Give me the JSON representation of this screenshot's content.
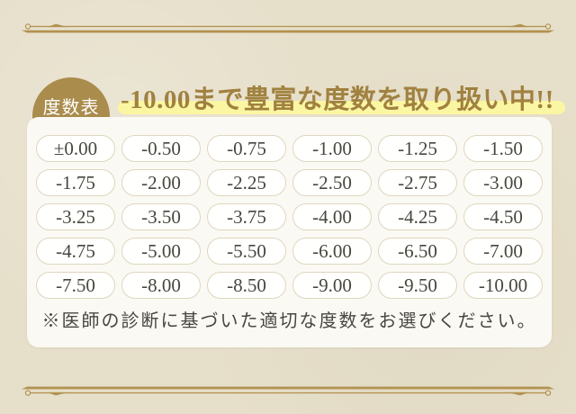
{
  "badge": {
    "label": "度数表"
  },
  "heading": {
    "text": "-10.00まで豊富な度数を取り扱い中!!"
  },
  "powers": {
    "columns": 6,
    "values": [
      "±0.00",
      "-0.50",
      "-0.75",
      "-1.00",
      "-1.25",
      "-1.50",
      "-1.75",
      "-2.00",
      "-2.25",
      "-2.50",
      "-2.75",
      "-3.00",
      "-3.25",
      "-3.50",
      "-3.75",
      "-4.00",
      "-4.25",
      "-4.50",
      "-4.75",
      "-5.00",
      "-5.50",
      "-6.00",
      "-6.50",
      "-7.00",
      "-7.50",
      "-8.00",
      "-8.50",
      "-9.00",
      "-9.50",
      "-10.00"
    ]
  },
  "note": {
    "text": "※医師の診断に基づいた適切な度数をお選びください。"
  },
  "colors": {
    "background": "#e6dfca",
    "gold": "#aa8c4c",
    "divider_gold": "#b29250",
    "heading_text": "#a0813f",
    "highlight": "#fbf6a2",
    "card_bg": "#fbf9f3",
    "pill_bg": "#fffffd",
    "pill_border": "#ded6bf",
    "text_dark": "#47463f"
  }
}
